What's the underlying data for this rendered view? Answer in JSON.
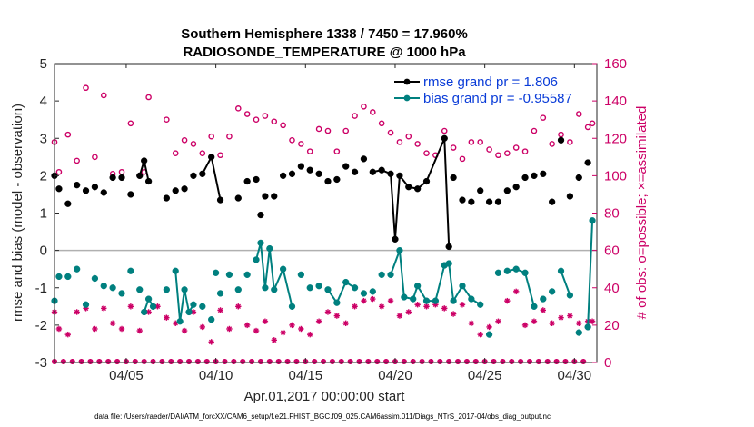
{
  "chart_data": {
    "type": "line",
    "title": "Southern Hemisphere 1338 / 7450 = 17.960%",
    "subtitle": "RADIOSONDE_TEMPERATURE @ 1000 hPa",
    "xlabel": "Apr.01,2017 00:00:00 start",
    "ylabel_left": "rmse and bias (model - observation)",
    "ylabel_right": "# of obs: o=possible; ×=assimilated",
    "footer": "data file: /Users/raeder/DAI/ATM_forcXX/CAM6_setup/f.e21.FHIST_BGC.f09_025.CAM6assim.011/Diags_NTrS_2017-04/obs_diag_output.nc",
    "xlim": [
      1,
      31.25
    ],
    "ylim_left": [
      -3,
      5
    ],
    "ylim_right": [
      0,
      160
    ],
    "xticks": [
      5,
      10,
      15,
      20,
      25,
      30
    ],
    "xtick_labels": [
      "04/05",
      "04/10",
      "04/15",
      "04/20",
      "04/25",
      "04/30"
    ],
    "yticks_left": [
      -3,
      -2,
      -1,
      0,
      1,
      2,
      3,
      4,
      5
    ],
    "yticks_left_labels": [
      "-3",
      "-2",
      "-1",
      "0",
      "1",
      "2",
      "3",
      "4",
      "5"
    ],
    "yticks_right": [
      0,
      20,
      40,
      60,
      80,
      100,
      120,
      140,
      160
    ],
    "yticks_right_labels": [
      "0",
      "20",
      "40",
      "60",
      "80",
      "100",
      "120",
      "140",
      "160"
    ],
    "zero_line": 0,
    "colors": {
      "rmse": "#000000",
      "bias": "#00807f",
      "obs": "#cc0066",
      "zero": "#b0b0b0",
      "legend_text": "#0a3cd8"
    },
    "legend": [
      {
        "name": "rmse",
        "label": "rmse grand pr = 1.806"
      },
      {
        "name": "bias",
        "label": "bias grand pr = -0.95587"
      }
    ],
    "series": [
      {
        "name": "rmse",
        "points": [
          [
            1.0,
            2.0
          ],
          [
            1.25,
            1.65
          ],
          [
            1.75,
            1.25
          ],
          [
            2.25,
            1.75
          ],
          [
            2.75,
            1.6
          ],
          [
            3.25,
            1.7
          ],
          [
            3.75,
            1.55
          ],
          [
            4.25,
            1.95
          ],
          [
            4.75,
            1.95
          ],
          [
            5.25,
            1.5
          ],
          [
            5.75,
            2.0
          ],
          [
            6.0,
            2.4
          ],
          [
            6.25,
            1.85
          ],
          [
            7.25,
            1.4
          ],
          [
            7.75,
            1.6
          ],
          [
            8.25,
            1.65
          ],
          [
            8.75,
            2.0
          ],
          [
            9.25,
            2.05
          ],
          [
            9.75,
            2.5
          ],
          [
            10.25,
            1.35
          ],
          [
            11.25,
            1.4
          ],
          [
            11.75,
            1.85
          ],
          [
            12.25,
            1.9
          ],
          [
            12.5,
            0.95
          ],
          [
            12.75,
            1.45
          ],
          [
            13.25,
            1.45
          ],
          [
            13.75,
            2.0
          ],
          [
            14.25,
            2.05
          ],
          [
            14.75,
            2.25
          ],
          [
            15.25,
            2.15
          ],
          [
            15.75,
            2.05
          ],
          [
            16.25,
            1.85
          ],
          [
            16.75,
            1.9
          ],
          [
            17.25,
            2.25
          ],
          [
            17.75,
            2.1
          ],
          [
            18.25,
            2.45
          ],
          [
            18.75,
            2.1
          ],
          [
            19.25,
            2.15
          ],
          [
            19.75,
            2.05
          ],
          [
            20.0,
            0.3
          ],
          [
            20.25,
            2.0
          ],
          [
            20.75,
            1.7
          ],
          [
            21.25,
            1.65
          ],
          [
            21.75,
            1.85
          ],
          [
            22.75,
            3.0
          ],
          [
            23.0,
            0.1
          ],
          [
            23.25,
            1.95
          ],
          [
            23.75,
            1.35
          ],
          [
            24.25,
            1.3
          ],
          [
            24.75,
            1.6
          ],
          [
            25.25,
            1.3
          ],
          [
            25.75,
            1.3
          ],
          [
            26.25,
            1.6
          ],
          [
            26.75,
            1.7
          ],
          [
            27.25,
            1.95
          ],
          [
            27.75,
            2.0
          ],
          [
            28.25,
            2.05
          ],
          [
            28.75,
            1.3
          ],
          [
            29.25,
            2.95
          ],
          [
            29.75,
            1.45
          ],
          [
            30.25,
            1.95
          ],
          [
            30.75,
            2.35
          ]
        ],
        "segments": [
          [
            10,
            12
          ],
          [
            17,
            19
          ],
          [
            36,
            45
          ]
        ]
      },
      {
        "name": "bias",
        "points": [
          [
            1.0,
            -1.35
          ],
          [
            1.25,
            -0.7
          ],
          [
            1.75,
            -0.7
          ],
          [
            2.25,
            -0.5
          ],
          [
            2.75,
            -1.45
          ],
          [
            3.25,
            -0.75
          ],
          [
            3.75,
            -0.95
          ],
          [
            4.25,
            -1.0
          ],
          [
            4.75,
            -1.15
          ],
          [
            5.25,
            -0.55
          ],
          [
            5.75,
            -1.05
          ],
          [
            6.0,
            -1.65
          ],
          [
            6.25,
            -1.3
          ],
          [
            6.5,
            -1.5
          ],
          [
            7.25,
            -1.05
          ],
          [
            7.75,
            -0.55
          ],
          [
            8.0,
            -1.9
          ],
          [
            8.25,
            -1.05
          ],
          [
            8.5,
            -1.65
          ],
          [
            8.75,
            -1.45
          ],
          [
            9.25,
            -1.5
          ],
          [
            9.75,
            -1.85
          ],
          [
            10.0,
            -0.6
          ],
          [
            10.25,
            -1.15
          ],
          [
            10.75,
            -0.65
          ],
          [
            11.25,
            -1.05
          ],
          [
            11.75,
            -0.65
          ],
          [
            12.25,
            -0.25
          ],
          [
            12.5,
            0.2
          ],
          [
            12.75,
            -1.0
          ],
          [
            13.0,
            0.05
          ],
          [
            13.25,
            -1.05
          ],
          [
            13.75,
            -0.5
          ],
          [
            14.25,
            -1.5
          ],
          [
            14.75,
            -0.65
          ],
          [
            15.25,
            -1.0
          ],
          [
            15.75,
            -0.95
          ],
          [
            16.25,
            -1.05
          ],
          [
            16.75,
            -1.4
          ],
          [
            17.25,
            -0.85
          ],
          [
            17.75,
            -1.0
          ],
          [
            18.25,
            -1.15
          ],
          [
            18.75,
            -1.1
          ],
          [
            19.25,
            -0.65
          ],
          [
            19.75,
            -0.65
          ],
          [
            20.25,
            0.0
          ],
          [
            20.5,
            -1.25
          ],
          [
            21.0,
            -1.3
          ],
          [
            21.25,
            -0.95
          ],
          [
            21.75,
            -1.35
          ],
          [
            22.25,
            -1.35
          ],
          [
            22.75,
            -0.4
          ],
          [
            23.0,
            -0.35
          ],
          [
            23.25,
            -1.35
          ],
          [
            23.75,
            -0.95
          ],
          [
            24.25,
            -1.3
          ],
          [
            24.75,
            -1.45
          ],
          [
            25.25,
            -2.25
          ],
          [
            25.75,
            -0.6
          ],
          [
            26.25,
            -0.55
          ],
          [
            26.75,
            -0.5
          ],
          [
            27.25,
            -0.6
          ],
          [
            27.75,
            -1.5
          ],
          [
            28.25,
            -1.3
          ],
          [
            28.75,
            -1.1
          ],
          [
            29.25,
            -0.55
          ],
          [
            29.75,
            -1.2
          ],
          [
            30.25,
            -2.2
          ],
          [
            30.75,
            -2.05
          ],
          [
            31.0,
            0.8
          ]
        ],
        "segments": [
          [
            11,
            13
          ],
          [
            15,
            19
          ],
          [
            27,
            33
          ],
          [
            37,
            40
          ],
          [
            44,
            56
          ],
          [
            59,
            62
          ],
          [
            65,
            66
          ],
          [
            68,
            69
          ]
        ]
      },
      {
        "name": "obs_possible",
        "axis": "right",
        "points": [
          [
            1.0,
            118
          ],
          [
            1.25,
            102
          ],
          [
            1.75,
            122
          ],
          [
            2.25,
            108
          ],
          [
            2.75,
            147
          ],
          [
            3.25,
            110
          ],
          [
            3.75,
            143
          ],
          [
            4.25,
            101
          ],
          [
            4.75,
            102
          ],
          [
            5.25,
            128
          ],
          [
            5.75,
            100
          ],
          [
            6.0,
            102
          ],
          [
            6.25,
            142
          ],
          [
            7.25,
            130
          ],
          [
            7.75,
            112
          ],
          [
            8.25,
            119
          ],
          [
            8.75,
            117
          ],
          [
            9.25,
            112
          ],
          [
            9.75,
            121
          ],
          [
            10.25,
            111
          ],
          [
            10.75,
            121
          ],
          [
            11.25,
            136
          ],
          [
            11.75,
            133
          ],
          [
            12.25,
            130
          ],
          [
            12.75,
            132
          ],
          [
            13.25,
            129
          ],
          [
            13.75,
            127
          ],
          [
            14.25,
            119
          ],
          [
            14.75,
            117
          ],
          [
            15.25,
            113
          ],
          [
            15.75,
            125
          ],
          [
            16.25,
            124
          ],
          [
            16.75,
            113
          ],
          [
            17.25,
            124
          ],
          [
            17.75,
            132
          ],
          [
            18.25,
            137
          ],
          [
            18.75,
            134
          ],
          [
            19.25,
            128
          ],
          [
            19.75,
            123
          ],
          [
            20.25,
            118
          ],
          [
            20.75,
            121
          ],
          [
            21.25,
            117
          ],
          [
            21.75,
            112
          ],
          [
            22.25,
            111
          ],
          [
            22.75,
            124
          ],
          [
            23.25,
            115
          ],
          [
            23.75,
            109
          ],
          [
            24.25,
            118
          ],
          [
            24.75,
            118
          ],
          [
            25.25,
            114
          ],
          [
            25.75,
            111
          ],
          [
            26.25,
            112
          ],
          [
            26.75,
            115
          ],
          [
            27.25,
            113
          ],
          [
            27.75,
            124
          ],
          [
            28.25,
            131
          ],
          [
            28.75,
            117
          ],
          [
            29.25,
            122
          ],
          [
            29.75,
            118
          ],
          [
            30.25,
            133
          ],
          [
            30.75,
            126
          ],
          [
            31.0,
            128
          ]
        ]
      },
      {
        "name": "obs_assimilated",
        "axis": "right",
        "points": [
          [
            1.0,
            27
          ],
          [
            1.25,
            18
          ],
          [
            1.75,
            15
          ],
          [
            2.25,
            27
          ],
          [
            2.75,
            29
          ],
          [
            3.25,
            18
          ],
          [
            3.75,
            29
          ],
          [
            4.25,
            21
          ],
          [
            4.75,
            18
          ],
          [
            5.25,
            30
          ],
          [
            5.75,
            17
          ],
          [
            6.25,
            27
          ],
          [
            6.75,
            30
          ],
          [
            7.25,
            24
          ],
          [
            7.75,
            21
          ],
          [
            8.25,
            17
          ],
          [
            8.75,
            27
          ],
          [
            9.25,
            19
          ],
          [
            9.75,
            11
          ],
          [
            10.25,
            28
          ],
          [
            10.75,
            18
          ],
          [
            11.25,
            30
          ],
          [
            11.75,
            20
          ],
          [
            12.25,
            17
          ],
          [
            12.75,
            22
          ],
          [
            13.25,
            12
          ],
          [
            13.75,
            16
          ],
          [
            14.25,
            20
          ],
          [
            14.75,
            18
          ],
          [
            15.25,
            15
          ],
          [
            15.75,
            22
          ],
          [
            16.25,
            27
          ],
          [
            16.75,
            25
          ],
          [
            17.25,
            21
          ],
          [
            17.75,
            30
          ],
          [
            18.25,
            33
          ],
          [
            18.75,
            34
          ],
          [
            19.25,
            30
          ],
          [
            19.75,
            33
          ],
          [
            20.25,
            25
          ],
          [
            20.75,
            27
          ],
          [
            21.25,
            31
          ],
          [
            21.75,
            30
          ],
          [
            22.25,
            31
          ],
          [
            22.75,
            29
          ],
          [
            23.25,
            26
          ],
          [
            23.75,
            31
          ],
          [
            24.25,
            21
          ],
          [
            24.75,
            15
          ],
          [
            25.25,
            19
          ],
          [
            25.75,
            22
          ],
          [
            26.25,
            33
          ],
          [
            26.75,
            38
          ],
          [
            27.25,
            20
          ],
          [
            27.75,
            22
          ],
          [
            28.25,
            28
          ],
          [
            28.75,
            21
          ],
          [
            29.25,
            24
          ],
          [
            29.75,
            25
          ],
          [
            30.25,
            21
          ],
          [
            30.75,
            22
          ],
          [
            31.0,
            22
          ]
        ]
      }
    ]
  }
}
